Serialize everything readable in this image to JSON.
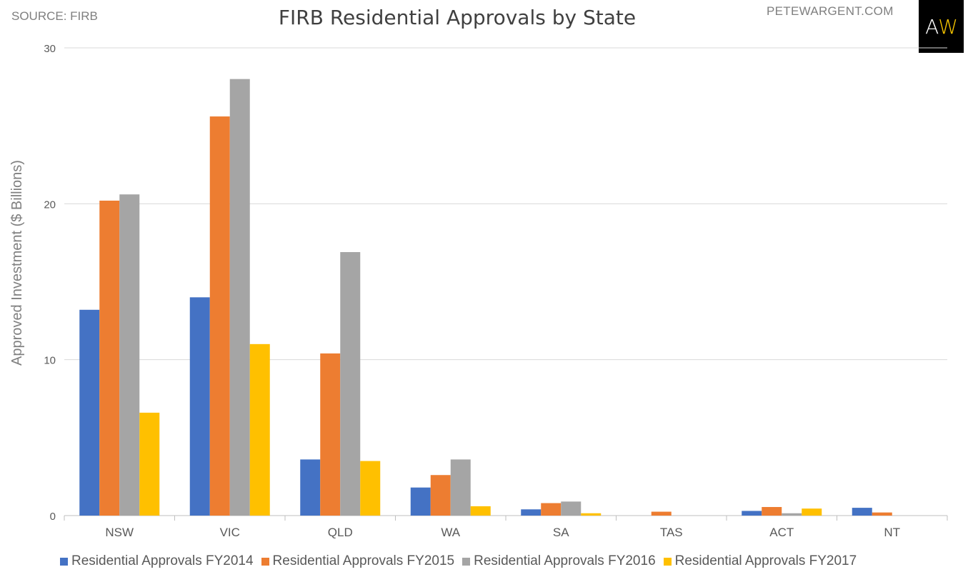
{
  "header": {
    "source": "SOURCE: FIRB",
    "site": "PETEWARGENT.COM",
    "logo_left": "A",
    "logo_right": "W"
  },
  "chart_data": {
    "type": "bar",
    "title": "FIRB Residential Approvals by State",
    "xlabel": "",
    "ylabel": "Approved Investment ($ Billions)",
    "ylim": [
      0,
      30
    ],
    "yticks": [
      0,
      10,
      20,
      30
    ],
    "grid": true,
    "legend_position": "bottom",
    "categories": [
      "NSW",
      "VIC",
      "QLD",
      "WA",
      "SA",
      "TAS",
      "ACT",
      "NT"
    ],
    "series": [
      {
        "name": "Residential Approvals FY2014",
        "color": "#4472c4",
        "values": [
          13.2,
          14.0,
          3.6,
          1.8,
          0.4,
          0.0,
          0.3,
          0.5
        ]
      },
      {
        "name": "Residential Approvals FY2015",
        "color": "#ed7d31",
        "values": [
          20.2,
          25.6,
          10.4,
          2.6,
          0.8,
          0.25,
          0.55,
          0.2
        ]
      },
      {
        "name": "Residential Approvals FY2016",
        "color": "#a5a5a5",
        "values": [
          20.6,
          28.0,
          16.9,
          3.6,
          0.9,
          0.0,
          0.15,
          0.0
        ]
      },
      {
        "name": "Residential Approvals FY2017",
        "color": "#ffc000",
        "values": [
          6.6,
          11.0,
          3.5,
          0.6,
          0.15,
          0.0,
          0.45,
          0.0
        ]
      }
    ]
  }
}
